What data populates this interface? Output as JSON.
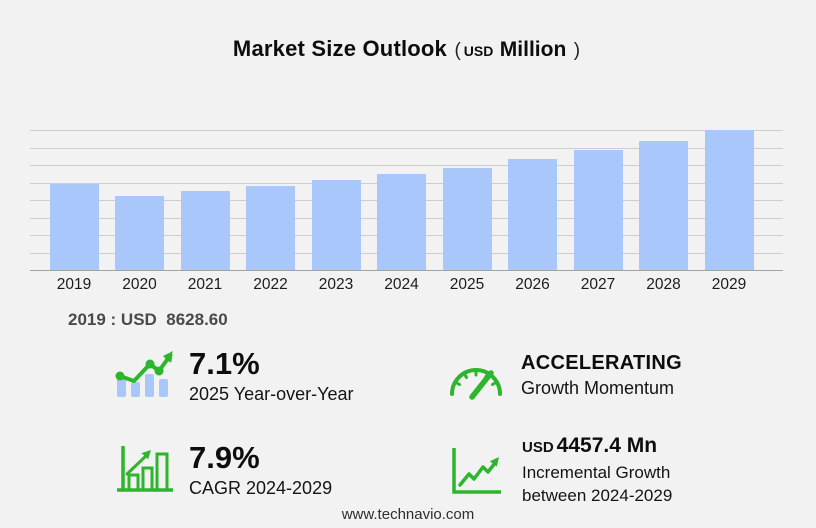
{
  "title": {
    "main": "Market Size Outlook",
    "paren_open": "(",
    "currency": "USD",
    "unit": "Million",
    "paren_close": ")"
  },
  "chart_data": {
    "type": "bar",
    "title": "Market Size Outlook (USD Million)",
    "categories": [
      "2019",
      "2020",
      "2021",
      "2022",
      "2023",
      "2024",
      "2025",
      "2026",
      "2027",
      "2028",
      "2029"
    ],
    "values": [
      8628.6,
      7500,
      7950,
      8460,
      9040,
      9635,
      10319,
      11154,
      12057,
      13033,
      14092
    ],
    "xlabel": "",
    "ylabel": "USD Million",
    "ylim": [
      0,
      14092
    ],
    "grid": true,
    "gridline_count": 9,
    "legend": false,
    "bar_color": "#a9c7fb",
    "annotation": "2019 : USD 8628.60"
  },
  "base_year_line": "2019 : USD  8628.60",
  "stats": [
    {
      "value": "7.1%",
      "label": "2025 Year-over-Year",
      "icon": "bar-chart-trend-icon"
    },
    {
      "value": "ACCELERATING",
      "label": "Growth Momentum",
      "icon": "speedometer-icon"
    },
    {
      "value": "7.9%",
      "label": "CAGR 2024-2029",
      "icon": "growth-bars-arrow-icon"
    },
    {
      "value_prefix": "USD",
      "value": "4457.4 Mn",
      "label_line1": "Incremental Growth",
      "label_line2": "between 2024-2029",
      "icon": "line-growth-axes-icon"
    }
  ],
  "footer": {
    "url": "www.technavio.com"
  },
  "colors": {
    "background": "#f2f2f3",
    "bar": "#a9c7fb",
    "accent_green": "#2db52d",
    "gridline": "#cdcdcf",
    "axis": "#a3a3a6"
  }
}
